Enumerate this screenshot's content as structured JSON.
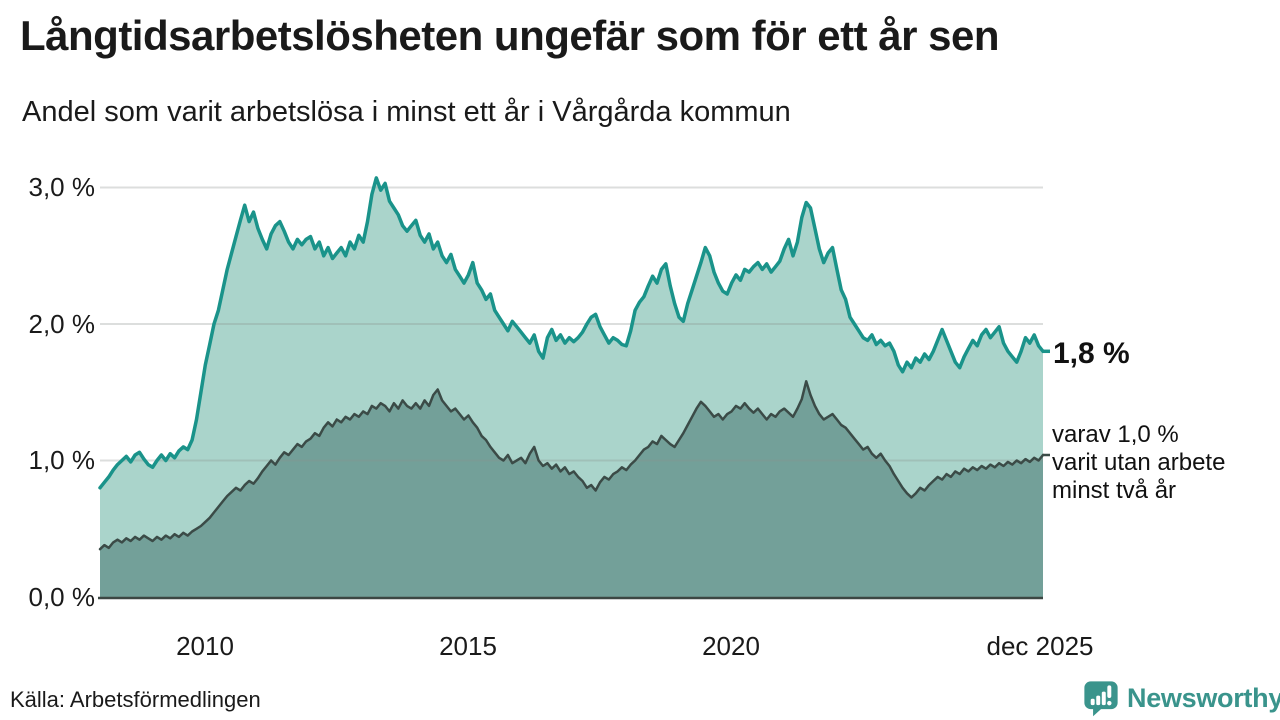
{
  "chart_data": {
    "type": "area",
    "title": "Långtidsarbetslösheten ungefär som för ett år sen",
    "subtitle": "Andel som varit arbetslösa i minst ett år i Vårgårda kommun",
    "x_start_year": 2008,
    "x_end_year": 2026,
    "frequency": "monthly",
    "ylim": [
      0,
      3.3
    ],
    "grid": "horizontal",
    "grid_color": "#8a9290",
    "axis_color": "#3c4743",
    "y_ticks": [
      {
        "value": 0,
        "label": "0,0 %"
      },
      {
        "value": 1,
        "label": "1,0 %"
      },
      {
        "value": 2,
        "label": "2,0 %"
      },
      {
        "value": 3,
        "label": "3,0 %"
      }
    ],
    "x_ticks": [
      {
        "value": 2010,
        "label": "2010"
      },
      {
        "value": 2015,
        "label": "2015"
      },
      {
        "value": 2020,
        "label": "2020"
      },
      {
        "value": 2025.92,
        "label": "dec 2025"
      }
    ],
    "annotations": {
      "total_latest": "1,8 %",
      "secondary_lines": [
        "varav 1,0 %",
        "varit utan arbete",
        "minst två år"
      ]
    },
    "source": "Källa: Arbetsförmedlingen",
    "series": [
      {
        "name": "varit arbetslösa i minst ett år",
        "line_color": "#1a938a",
        "fill_color": "#aad4cb",
        "line_width": 3.5,
        "latest_value": 1.8,
        "values": [
          0.8,
          0.84,
          0.88,
          0.93,
          0.97,
          1.0,
          1.03,
          0.99,
          1.04,
          1.06,
          1.01,
          0.97,
          0.95,
          1.0,
          1.04,
          1.0,
          1.05,
          1.02,
          1.07,
          1.1,
          1.08,
          1.15,
          1.3,
          1.5,
          1.7,
          1.85,
          2.0,
          2.1,
          2.25,
          2.4,
          2.52,
          2.64,
          2.76,
          2.87,
          2.75,
          2.82,
          2.7,
          2.62,
          2.55,
          2.66,
          2.72,
          2.75,
          2.68,
          2.6,
          2.55,
          2.62,
          2.58,
          2.62,
          2.64,
          2.55,
          2.6,
          2.5,
          2.56,
          2.48,
          2.52,
          2.56,
          2.5,
          2.6,
          2.55,
          2.65,
          2.6,
          2.75,
          2.95,
          3.07,
          2.98,
          3.03,
          2.9,
          2.85,
          2.8,
          2.72,
          2.68,
          2.72,
          2.76,
          2.65,
          2.6,
          2.66,
          2.55,
          2.6,
          2.5,
          2.45,
          2.51,
          2.4,
          2.35,
          2.3,
          2.36,
          2.45,
          2.3,
          2.25,
          2.18,
          2.22,
          2.1,
          2.05,
          2.0,
          1.95,
          2.02,
          1.98,
          1.94,
          1.9,
          1.86,
          1.92,
          1.8,
          1.75,
          1.9,
          1.96,
          1.88,
          1.92,
          1.86,
          1.9,
          1.87,
          1.9,
          1.94,
          2.0,
          2.05,
          2.07,
          1.98,
          1.92,
          1.86,
          1.9,
          1.88,
          1.85,
          1.84,
          1.95,
          2.1,
          2.16,
          2.2,
          2.28,
          2.35,
          2.3,
          2.4,
          2.44,
          2.28,
          2.15,
          2.05,
          2.02,
          2.15,
          2.25,
          2.35,
          2.45,
          2.56,
          2.5,
          2.38,
          2.3,
          2.24,
          2.22,
          2.3,
          2.36,
          2.32,
          2.4,
          2.38,
          2.42,
          2.45,
          2.4,
          2.44,
          2.38,
          2.42,
          2.46,
          2.55,
          2.62,
          2.5,
          2.6,
          2.78,
          2.89,
          2.85,
          2.7,
          2.55,
          2.45,
          2.52,
          2.56,
          2.4,
          2.25,
          2.18,
          2.05,
          2.0,
          1.95,
          1.9,
          1.88,
          1.92,
          1.85,
          1.88,
          1.84,
          1.86,
          1.8,
          1.7,
          1.65,
          1.72,
          1.68,
          1.75,
          1.72,
          1.78,
          1.74,
          1.8,
          1.88,
          1.96,
          1.88,
          1.8,
          1.72,
          1.68,
          1.76,
          1.82,
          1.88,
          1.84,
          1.92,
          1.96,
          1.9,
          1.94,
          1.98,
          1.86,
          1.8,
          1.76,
          1.72,
          1.8,
          1.9,
          1.86,
          1.92,
          1.84,
          1.8
        ]
      },
      {
        "name": "varit utan arbete minst två år",
        "line_color": "#3b4b47",
        "fill_color": "#73a099",
        "line_width": 2.5,
        "latest_value": 1.0,
        "values": [
          0.35,
          0.38,
          0.36,
          0.4,
          0.42,
          0.4,
          0.43,
          0.41,
          0.44,
          0.42,
          0.45,
          0.43,
          0.41,
          0.44,
          0.42,
          0.45,
          0.43,
          0.46,
          0.44,
          0.47,
          0.45,
          0.48,
          0.5,
          0.52,
          0.55,
          0.58,
          0.62,
          0.66,
          0.7,
          0.74,
          0.77,
          0.8,
          0.78,
          0.82,
          0.85,
          0.83,
          0.87,
          0.92,
          0.96,
          1.0,
          0.97,
          1.02,
          1.06,
          1.04,
          1.08,
          1.12,
          1.1,
          1.14,
          1.16,
          1.2,
          1.18,
          1.24,
          1.28,
          1.25,
          1.3,
          1.28,
          1.32,
          1.3,
          1.34,
          1.32,
          1.36,
          1.34,
          1.4,
          1.38,
          1.42,
          1.4,
          1.36,
          1.42,
          1.38,
          1.44,
          1.4,
          1.38,
          1.42,
          1.38,
          1.44,
          1.4,
          1.48,
          1.52,
          1.44,
          1.4,
          1.36,
          1.38,
          1.34,
          1.3,
          1.33,
          1.28,
          1.24,
          1.18,
          1.15,
          1.1,
          1.06,
          1.02,
          1.0,
          1.04,
          0.98,
          1.0,
          1.02,
          0.98,
          1.05,
          1.1,
          1.0,
          0.96,
          0.98,
          0.94,
          0.97,
          0.92,
          0.95,
          0.9,
          0.92,
          0.88,
          0.85,
          0.8,
          0.82,
          0.78,
          0.84,
          0.88,
          0.86,
          0.9,
          0.92,
          0.95,
          0.93,
          0.97,
          1.0,
          1.04,
          1.08,
          1.1,
          1.14,
          1.12,
          1.18,
          1.15,
          1.12,
          1.1,
          1.15,
          1.2,
          1.26,
          1.32,
          1.38,
          1.43,
          1.4,
          1.36,
          1.32,
          1.34,
          1.3,
          1.34,
          1.36,
          1.4,
          1.38,
          1.42,
          1.38,
          1.35,
          1.38,
          1.34,
          1.3,
          1.34,
          1.32,
          1.36,
          1.38,
          1.35,
          1.32,
          1.38,
          1.45,
          1.58,
          1.48,
          1.4,
          1.34,
          1.3,
          1.32,
          1.34,
          1.3,
          1.26,
          1.24,
          1.2,
          1.16,
          1.12,
          1.08,
          1.1,
          1.05,
          1.02,
          1.05,
          1.0,
          0.96,
          0.9,
          0.85,
          0.8,
          0.76,
          0.73,
          0.76,
          0.8,
          0.78,
          0.82,
          0.85,
          0.88,
          0.86,
          0.9,
          0.88,
          0.92,
          0.9,
          0.94,
          0.92,
          0.95,
          0.93,
          0.96,
          0.94,
          0.97,
          0.95,
          0.98,
          0.96,
          0.99,
          0.97,
          1.0,
          0.98,
          1.01,
          0.99,
          1.02,
          1.0,
          1.04
        ]
      }
    ]
  },
  "footer": {
    "brand_name": "Newsworthy",
    "brand_color": "#3a948c"
  }
}
